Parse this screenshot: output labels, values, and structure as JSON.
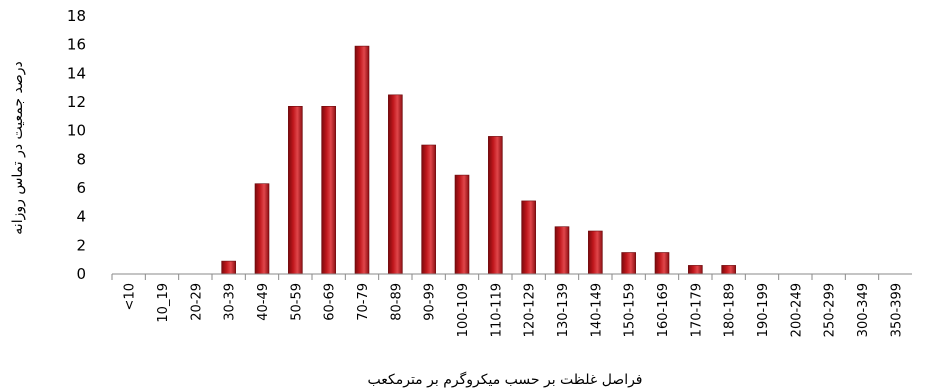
{
  "chart_data": {
    "type": "bar",
    "xlabel": "فراصل غلظت بر حسب میکروگرم بر مترمکعب",
    "ylabel": "درصد جمعیت در تماس روزانه",
    "ylim": [
      0,
      18
    ],
    "yticks": [
      0,
      2,
      4,
      6,
      8,
      10,
      12,
      14,
      16,
      18
    ],
    "grid": false,
    "bar_color": "#c0171c",
    "categories": [
      "<10",
      "10_19",
      "20-29",
      "30-39",
      "40-49",
      "50-59",
      "60-69",
      "70-79",
      "80-89",
      "90-99",
      "100-109",
      "110-119",
      "120-129",
      "130-139",
      "140-149",
      "150-159",
      "160-169",
      "170-179",
      "180-189",
      "190-199",
      "200-249",
      "250-299",
      "300-349",
      "350-399"
    ],
    "values": [
      0,
      0,
      0,
      0.9,
      6.3,
      11.7,
      11.7,
      15.9,
      12.5,
      9.0,
      6.9,
      9.6,
      5.1,
      3.3,
      3.0,
      1.5,
      1.5,
      0.6,
      0.6,
      0,
      0,
      0,
      0,
      0
    ]
  }
}
